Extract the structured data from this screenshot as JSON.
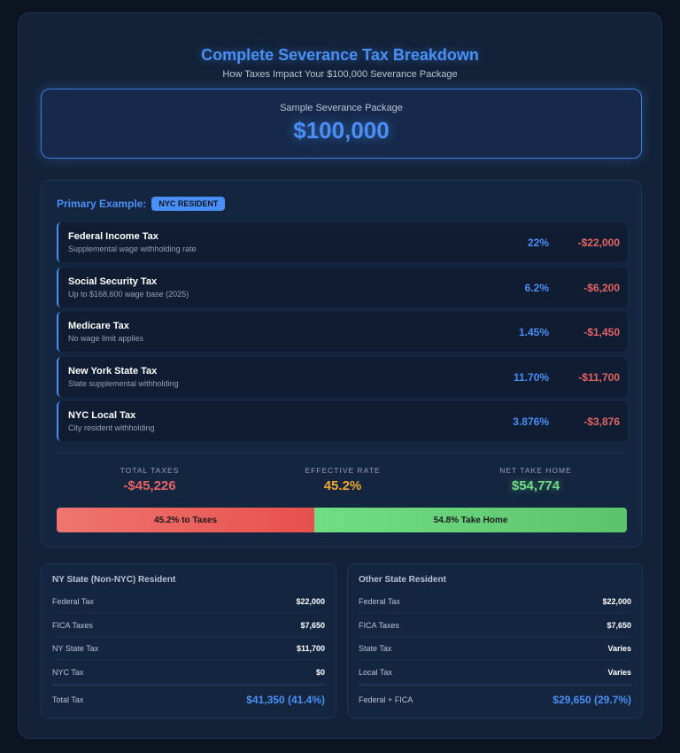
{
  "header": {
    "title": "Complete Severance Tax Breakdown",
    "subtitle": "How Taxes Impact Your $100,000 Severance Package"
  },
  "package": {
    "label": "Sample Severance Package",
    "amount": "$100,000"
  },
  "primary": {
    "label": "Primary Example:",
    "badge": "NYC RESIDENT",
    "rows": [
      {
        "name": "Federal Income Tax",
        "desc": "Supplemental wage withholding rate",
        "rate": "22%",
        "amount": "-$22,000"
      },
      {
        "name": "Social Security Tax",
        "desc": "Up to $168,600 wage base (2025)",
        "rate": "6.2%",
        "amount": "-$6,200"
      },
      {
        "name": "Medicare Tax",
        "desc": "No wage limit applies",
        "rate": "1.45%",
        "amount": "-$1,450"
      },
      {
        "name": "New York State Tax",
        "desc": "State supplemental withholding",
        "rate": "11.70%",
        "amount": "-$11,700"
      },
      {
        "name": "NYC Local Tax",
        "desc": "City resident withholding",
        "rate": "3.876%",
        "amount": "-$3,876"
      }
    ],
    "summary": {
      "total_label": "TOTAL TAXES",
      "total": "-$45,226",
      "rate_label": "EFFECTIVE RATE",
      "rate": "45.2%",
      "net_label": "NET TAKE HOME",
      "net": "$54,774"
    },
    "bar": {
      "tax_percent": 45.2,
      "tax_label": "45.2% to Taxes",
      "home_percent": 54.8,
      "home_label": "54.8% Take Home"
    }
  },
  "comparisons": [
    {
      "title": "NY State (Non-NYC) Resident",
      "rows": [
        {
          "k": "Federal Tax",
          "v": "$22,000"
        },
        {
          "k": "FICA Taxes",
          "v": "$7,650"
        },
        {
          "k": "NY State Tax",
          "v": "$11,700"
        },
        {
          "k": "NYC Tax",
          "v": "$0"
        }
      ],
      "total_label": "Total Tax",
      "total": "$41,350 (41.4%)"
    },
    {
      "title": "Other State Resident",
      "rows": [
        {
          "k": "Federal Tax",
          "v": "$22,000"
        },
        {
          "k": "FICA Taxes",
          "v": "$7,650"
        },
        {
          "k": "State Tax",
          "v": "Varies"
        },
        {
          "k": "Local Tax",
          "v": "Varies"
        }
      ],
      "total_label": "Federal + FICA",
      "total": "$29,650 (29.7%)"
    }
  ],
  "colors": {
    "accent": "#4a8ff5",
    "negative": "#e46464",
    "rate": "#f0a830",
    "positive": "#6ddc82"
  }
}
